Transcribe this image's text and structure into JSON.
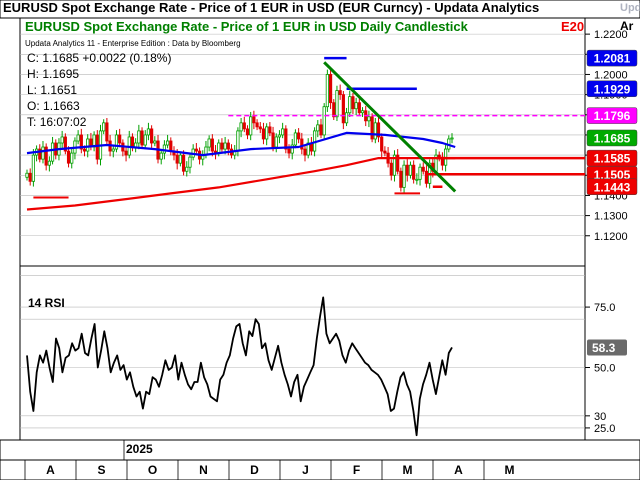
{
  "window": {
    "title": "EURUSD Spot Exchange Rate - Price of 1 EUR in USD (EUR Curncy) - Updata Analytics",
    "vendor_mark": "Updata"
  },
  "chart_data": [
    {
      "type": "candlestick",
      "title": "EURUSD Spot Exchange Rate - Price of 1 EUR in USD Daily Candlestick",
      "title_badge": "E20",
      "subtitle": "Updata Analytics 11 - Enterprise Edition : Data by Bloomberg",
      "ohlc_readout": [
        {
          "label": "C:",
          "value": "1.1685 +0.0022 (0.18%)"
        },
        {
          "label": "H:",
          "value": "1.1695"
        },
        {
          "label": "L:",
          "value": "1.1651"
        },
        {
          "label": "O:",
          "value": "1.1663"
        },
        {
          "label": "T:",
          "value": "16:07:02"
        }
      ],
      "y_axis": {
        "side": "right",
        "ylim": [
          1.105,
          1.228
        ],
        "ticks": [
          "1.2200",
          "1.2100",
          "1.2000",
          "1.1900",
          "1.1800",
          "1.1700",
          "1.1600",
          "1.1500",
          "1.1400",
          "1.1300",
          "1.1200"
        ],
        "extra_label": "Ar"
      },
      "x_axis": {
        "year_label": "2025",
        "months": [
          "A",
          "S",
          "O",
          "N",
          "D",
          "J",
          "F",
          "M",
          "A",
          "M"
        ]
      },
      "close_series": [
        1.151,
        1.147,
        1.16,
        1.163,
        1.158,
        1.164,
        1.155,
        1.157,
        1.166,
        1.16,
        1.166,
        1.169,
        1.162,
        1.156,
        1.161,
        1.167,
        1.17,
        1.163,
        1.162,
        1.168,
        1.164,
        1.17,
        1.158,
        1.172,
        1.176,
        1.167,
        1.162,
        1.163,
        1.17,
        1.166,
        1.162,
        1.16,
        1.169,
        1.164,
        1.166,
        1.172,
        1.165,
        1.17,
        1.173,
        1.166,
        1.167,
        1.158,
        1.161,
        1.165,
        1.167,
        1.162,
        1.16,
        1.156,
        1.16,
        1.152,
        1.154,
        1.159,
        1.163,
        1.162,
        1.158,
        1.16,
        1.164,
        1.168,
        1.162,
        1.161,
        1.166,
        1.163,
        1.166,
        1.163,
        1.16,
        1.162,
        1.172,
        1.176,
        1.173,
        1.17,
        1.179,
        1.176,
        1.174,
        1.173,
        1.168,
        1.174,
        1.171,
        1.164,
        1.169,
        1.17,
        1.173,
        1.163,
        1.161,
        1.165,
        1.171,
        1.168,
        1.163,
        1.16,
        1.166,
        1.162,
        1.172,
        1.175,
        1.17,
        1.184,
        1.2,
        1.186,
        1.179,
        1.192,
        1.19,
        1.176,
        1.181,
        1.189,
        1.183,
        1.186,
        1.181,
        1.182,
        1.177,
        1.179,
        1.168,
        1.176,
        1.169,
        1.162,
        1.161,
        1.156,
        1.15,
        1.16,
        1.152,
        1.144,
        1.155,
        1.15,
        1.155,
        1.148,
        1.148,
        1.154,
        1.152,
        1.146,
        1.156,
        1.152,
        1.16,
        1.159,
        1.155,
        1.163,
        1.168,
        1.1685
      ],
      "moving_averages": [
        {
          "name": "blue_ma",
          "color": "#0000ee",
          "points": [
            [
              0,
              1.161
            ],
            [
              10,
              1.163
            ],
            [
              25,
              1.165
            ],
            [
              40,
              1.163
            ],
            [
              55,
              1.16
            ],
            [
              70,
              1.163
            ],
            [
              85,
              1.164
            ],
            [
              100,
              1.171
            ],
            [
              112,
              1.17
            ],
            [
              124,
              1.168
            ],
            [
              130,
              1.166
            ],
            [
              134,
              1.164
            ]
          ]
        },
        {
          "name": "red_ma",
          "color": "#ee0000",
          "points": [
            [
              0,
              1.133
            ],
            [
              15,
              1.135
            ],
            [
              30,
              1.138
            ],
            [
              45,
              1.141
            ],
            [
              60,
              1.144
            ],
            [
              75,
              1.148
            ],
            [
              90,
              1.152
            ],
            [
              100,
              1.155
            ],
            [
              110,
              1.1585
            ],
            [
              120,
              1.1585
            ],
            [
              134,
              1.1585
            ]
          ]
        }
      ],
      "trendline": {
        "color": "#008000",
        "points": [
          [
            93,
            1.206
          ],
          [
            134,
            1.142
          ]
        ]
      },
      "levels": [
        {
          "value": "1.2081",
          "color": "#0000ee",
          "line_from": 93,
          "line_to": 100
        },
        {
          "value": "1.1929",
          "color": "#0000ee",
          "line_from": 100,
          "line_to": 122
        },
        {
          "value": "1.1796",
          "color": "#ff00ff",
          "dashed": true,
          "line_from": 63,
          "line_to": 145
        },
        {
          "value": "1.1685",
          "color": "#00aa00",
          "line_from": null,
          "line_to": null
        },
        {
          "value": "1.1585",
          "color": "#ee0000",
          "line_from": 128,
          "line_to": 135
        },
        {
          "value": "1.1505",
          "color": "#ee0000",
          "line_from": 125,
          "line_to": 145
        },
        {
          "value": "1.1443",
          "color": "#ee0000",
          "line_from": 127,
          "line_to": 130
        }
      ],
      "extra_red_segments": [
        {
          "value": 1.139,
          "from": 2,
          "to": 13
        },
        {
          "value": 1.141,
          "from": 115,
          "to": 123
        }
      ],
      "grid": true
    },
    {
      "type": "line",
      "title": "14 RSI",
      "y_axis": {
        "side": "right",
        "ylim": [
          20,
          92
        ],
        "ticks": [
          "75.0",
          "50.0",
          "30",
          "25.0"
        ],
        "gridlines": [
          88,
          75,
          70,
          50,
          30,
          25
        ]
      },
      "current_value": "58.3",
      "series": [
        {
          "values": [
            55,
            40,
            32,
            48,
            55,
            52,
            57,
            50,
            44,
            62,
            58,
            48,
            54,
            55,
            60,
            57,
            58,
            64,
            56,
            55,
            62,
            68,
            50,
            57,
            65,
            58,
            48,
            52,
            55,
            49,
            51,
            45,
            48,
            42,
            38,
            40,
            33,
            40,
            39,
            46,
            45,
            42,
            47,
            53,
            49,
            50,
            55,
            45,
            52,
            47,
            43,
            41,
            44,
            44,
            52,
            46,
            43,
            38,
            37,
            36,
            45,
            47,
            52,
            55,
            62,
            67,
            68,
            60,
            55,
            65,
            63,
            70,
            68,
            58,
            60,
            53,
            49,
            54,
            59,
            52,
            47,
            43,
            38,
            44,
            47,
            36,
            42,
            45,
            48,
            51,
            62,
            71,
            79,
            64,
            60,
            62,
            64,
            61,
            55,
            52,
            57,
            60,
            58,
            56,
            54,
            52,
            51,
            49,
            48,
            47,
            45,
            42,
            39,
            32,
            33,
            40,
            46,
            48,
            43,
            40,
            32,
            22,
            37,
            43,
            47,
            52,
            45,
            39,
            46,
            53,
            47,
            56,
            58.3
          ]
        }
      ]
    }
  ]
}
